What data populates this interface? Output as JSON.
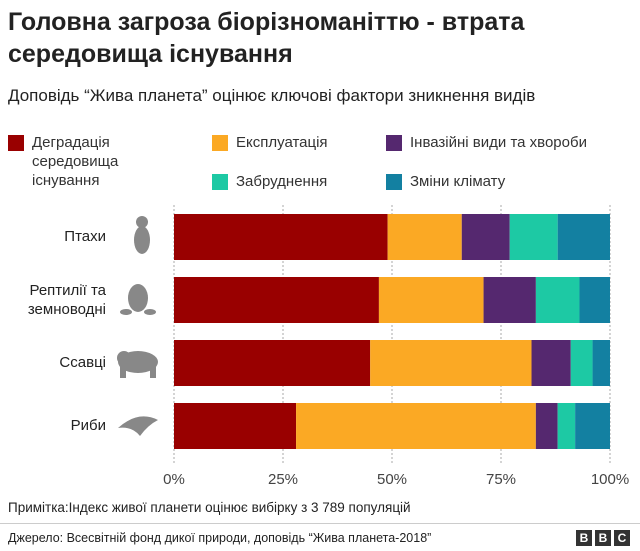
{
  "chart_data": {
    "type": "stacked-bar-horizontal",
    "title": "Головна загроза біорізноманіттю - втрата середовища існування",
    "subtitle": "Доповідь “Жива планета” оцінює ключові фактори зникнення видів",
    "categories": [
      "Птахи",
      "Рептилії та земноводні",
      "Ссавці",
      "Риби"
    ],
    "series": [
      {
        "name": "Деградація середовища існування",
        "color": "#990000",
        "values": [
          49,
          47,
          45,
          28
        ]
      },
      {
        "name": "Експлуатація",
        "color": "#fba924",
        "values": [
          17,
          24,
          37,
          55
        ]
      },
      {
        "name": "Інвазійні види та хвороби",
        "color": "#55286f",
        "values": [
          11,
          12,
          9,
          5
        ]
      },
      {
        "name": "Забруднення",
        "color": "#1dc9a4",
        "values": [
          11,
          10,
          5,
          4
        ]
      },
      {
        "name": "Зміни клімату",
        "color": "#1380a1",
        "values": [
          12,
          7,
          4,
          8
        ]
      }
    ],
    "xlim": [
      0,
      100
    ],
    "xticks": [
      {
        "value": 0,
        "label": "0%"
      },
      {
        "value": 25,
        "label": "25%"
      },
      {
        "value": 50,
        "label": "50%"
      },
      {
        "value": 75,
        "label": "75%"
      },
      {
        "value": 100,
        "label": "100%"
      }
    ],
    "grid": true,
    "note": "Примітка:Індекс живої планети оцінює вибірку з 3 789 популяцій",
    "source": "Джерело: Всесвітній фонд дикої природи, доповідь “Жива планета-2018”",
    "logo": [
      "B",
      "B",
      "C"
    ]
  }
}
